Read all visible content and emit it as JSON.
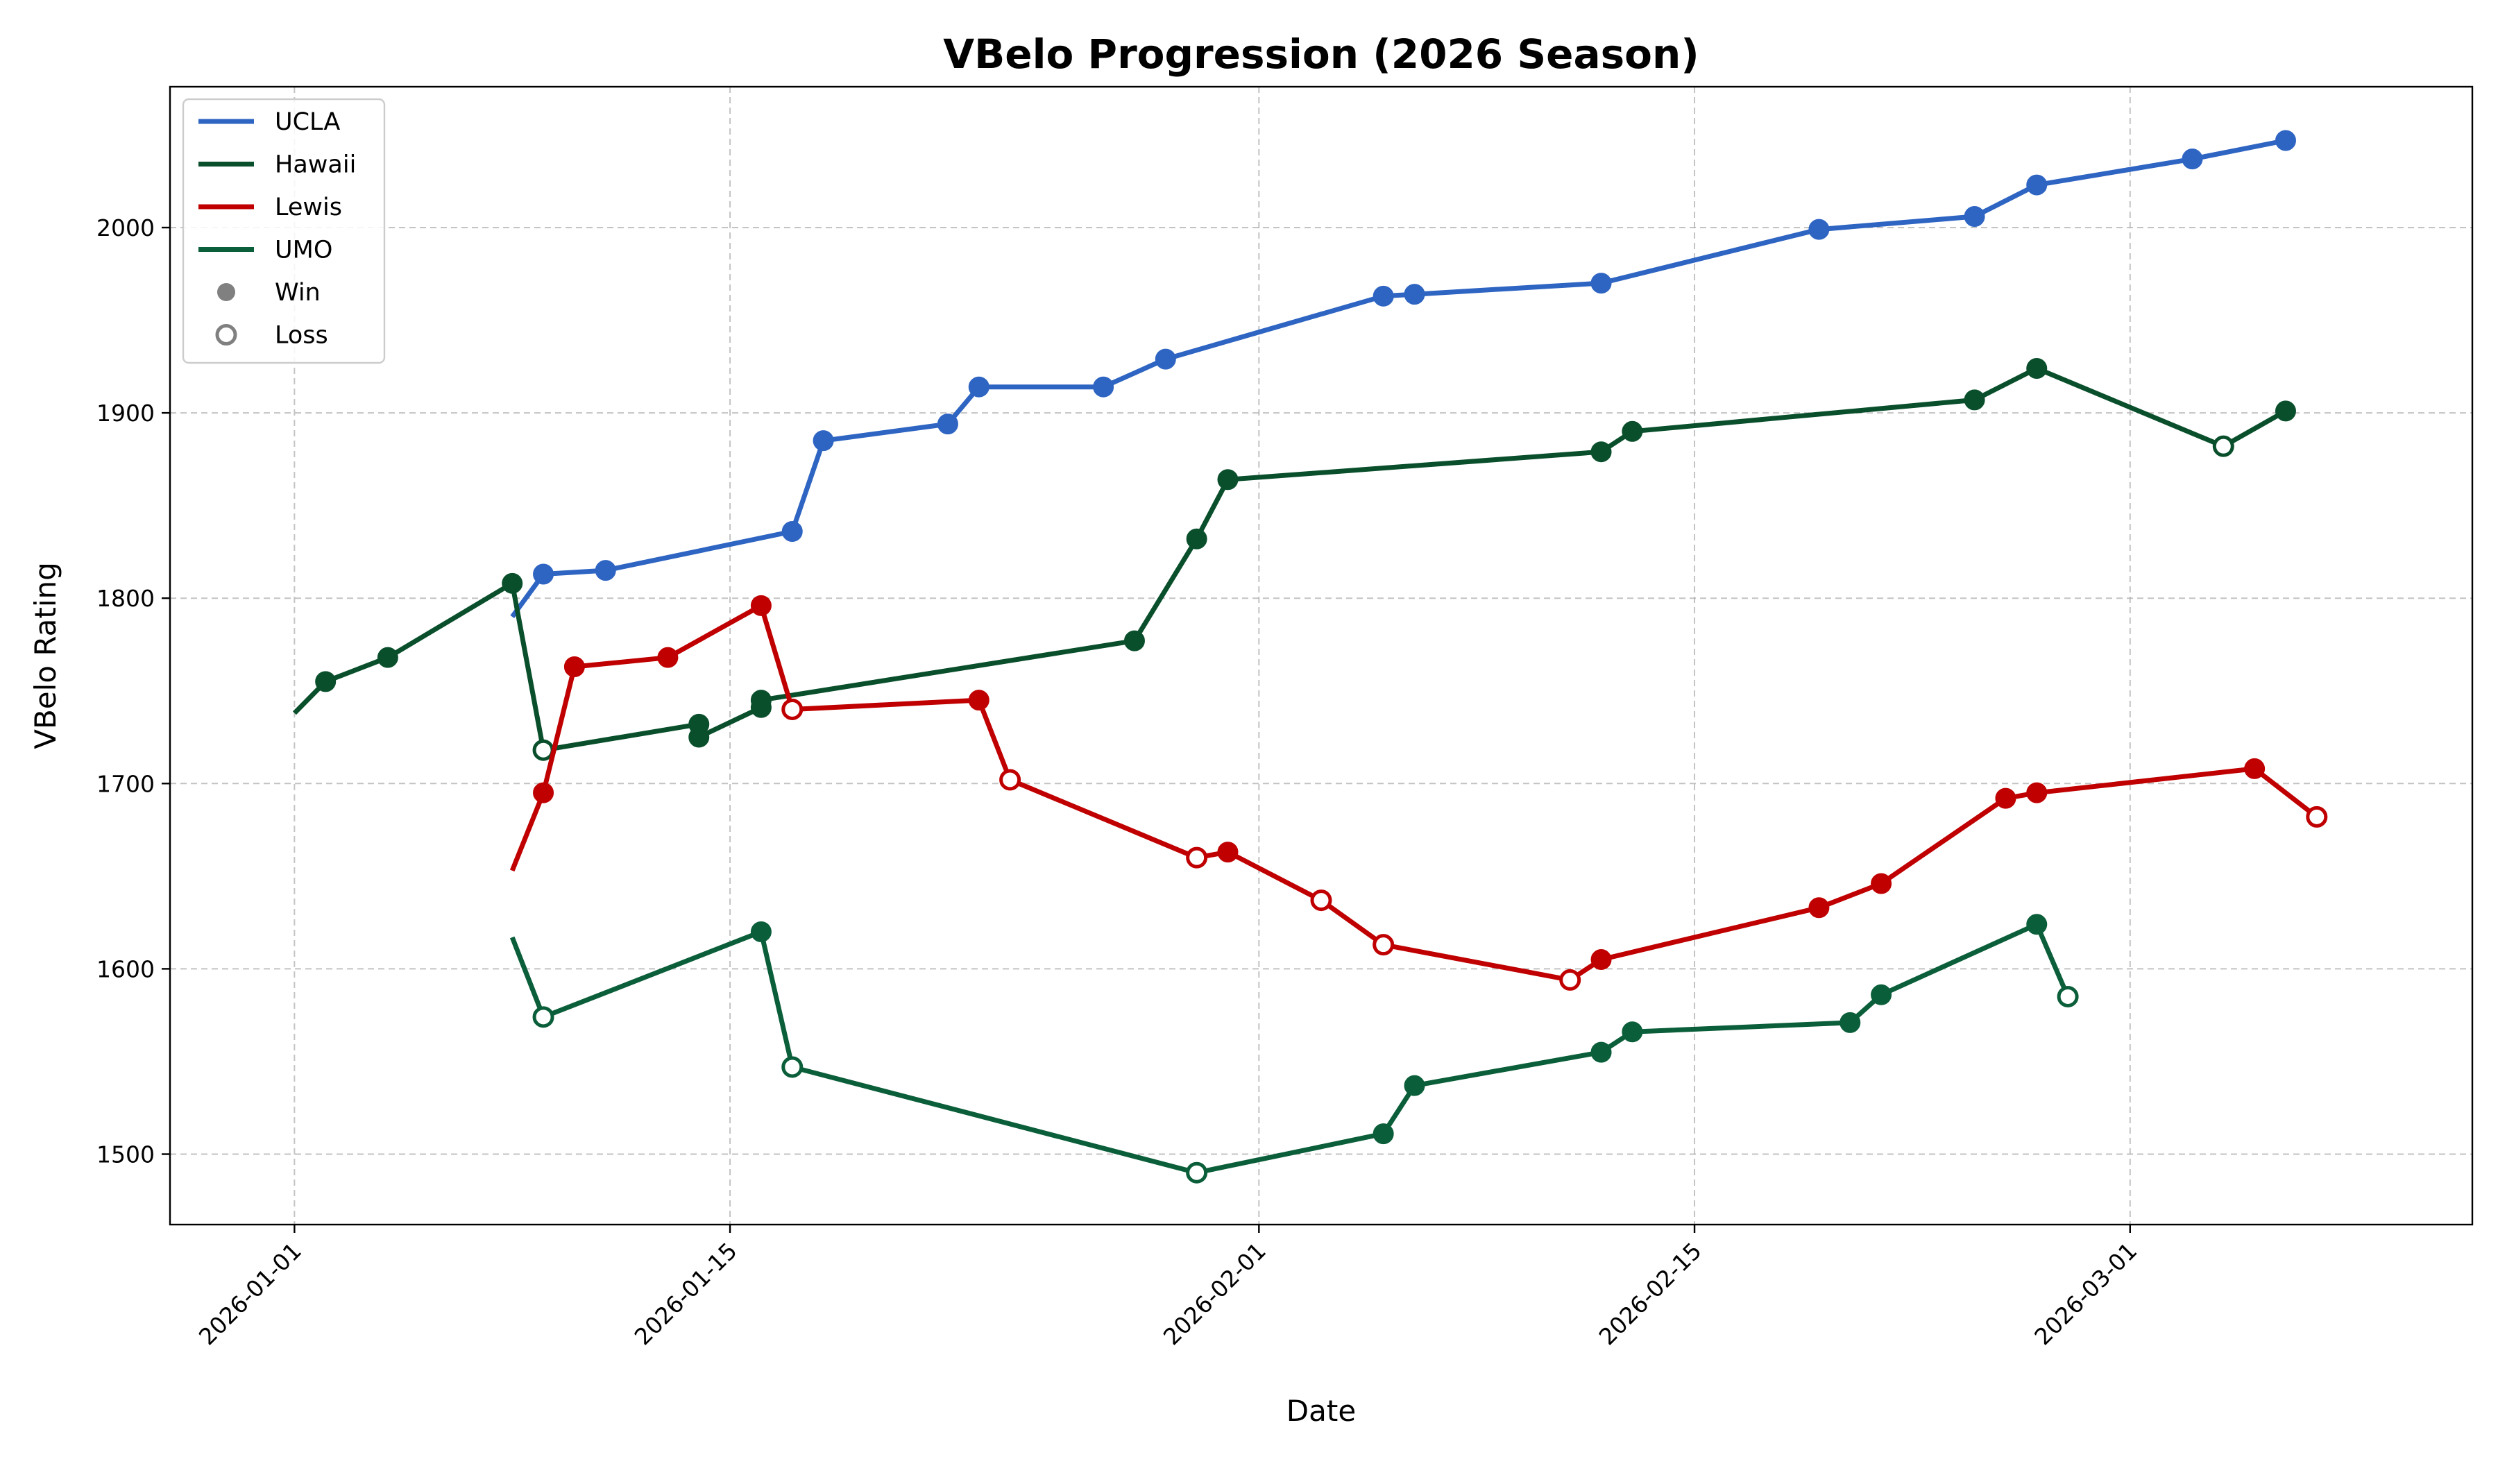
{
  "chart_data": {
    "type": "line",
    "title": "VBelo Progression (2026 Season)",
    "xlabel": "Date",
    "ylabel": "VBelo Rating",
    "xlim": [
      "2025-12-28",
      "2026-03-12"
    ],
    "ylim": [
      1462,
      2076
    ],
    "x_ticks": [
      "2026-01-01",
      "2026-01-15",
      "2026-02-01",
      "2026-02-15",
      "2026-03-01"
    ],
    "y_ticks": [
      1500,
      1600,
      1700,
      1800,
      1900,
      2000
    ],
    "grid": true,
    "legend_position": "top-left",
    "legend": {
      "win_label": "Win",
      "loss_label": "Loss",
      "marker_color": "#808080"
    },
    "series": [
      {
        "name": "UCLA",
        "color": "#2e64c2",
        "start": {
          "x": "2026-01-08",
          "y": 1790
        },
        "points": [
          {
            "x": "2026-01-09",
            "y": 1813,
            "result": "win"
          },
          {
            "x": "2026-01-11",
            "y": 1815,
            "result": "win"
          },
          {
            "x": "2026-01-17",
            "y": 1836,
            "result": "win"
          },
          {
            "x": "2026-01-18",
            "y": 1885,
            "result": "win"
          },
          {
            "x": "2026-01-22",
            "y": 1894,
            "result": "win"
          },
          {
            "x": "2026-01-23",
            "y": 1914,
            "result": "win"
          },
          {
            "x": "2026-01-27",
            "y": 1914,
            "result": "win"
          },
          {
            "x": "2026-01-29",
            "y": 1929,
            "result": "win"
          },
          {
            "x": "2026-02-05",
            "y": 1963,
            "result": "win"
          },
          {
            "x": "2026-02-06",
            "y": 1964,
            "result": "win"
          },
          {
            "x": "2026-02-12",
            "y": 1970,
            "result": "win"
          },
          {
            "x": "2026-02-19",
            "y": 1999,
            "result": "win"
          },
          {
            "x": "2026-02-24",
            "y": 2006,
            "result": "win"
          },
          {
            "x": "2026-02-26",
            "y": 2023,
            "result": "win"
          },
          {
            "x": "2026-03-03",
            "y": 2037,
            "result": "win"
          },
          {
            "x": "2026-03-06",
            "y": 2047,
            "result": "win"
          }
        ]
      },
      {
        "name": "Hawaii",
        "color": "#0a4f2c",
        "start": {
          "x": "2026-01-01",
          "y": 1738
        },
        "points": [
          {
            "x": "2026-01-02",
            "y": 1755,
            "result": "win"
          },
          {
            "x": "2026-01-04",
            "y": 1768,
            "result": "win"
          },
          {
            "x": "2026-01-08",
            "y": 1808,
            "result": "win"
          },
          {
            "x": "2026-01-09",
            "y": 1718,
            "result": "loss"
          },
          {
            "x": "2026-01-14",
            "y": 1732,
            "result": "win"
          },
          {
            "x": "2026-01-14",
            "y": 1725,
            "result": "win"
          },
          {
            "x": "2026-01-16",
            "y": 1741,
            "result": "win"
          },
          {
            "x": "2026-01-16",
            "y": 1745,
            "result": "win"
          },
          {
            "x": "2026-01-28",
            "y": 1777,
            "result": "win"
          },
          {
            "x": "2026-01-30",
            "y": 1832,
            "result": "win"
          },
          {
            "x": "2026-01-31",
            "y": 1864,
            "result": "win"
          },
          {
            "x": "2026-02-12",
            "y": 1879,
            "result": "win"
          },
          {
            "x": "2026-02-13",
            "y": 1890,
            "result": "win"
          },
          {
            "x": "2026-02-24",
            "y": 1907,
            "result": "win"
          },
          {
            "x": "2026-02-26",
            "y": 1924,
            "result": "win"
          },
          {
            "x": "2026-03-04",
            "y": 1882,
            "result": "loss"
          },
          {
            "x": "2026-03-06",
            "y": 1901,
            "result": "win"
          }
        ]
      },
      {
        "name": "Lewis",
        "color": "#c00000",
        "start": {
          "x": "2026-01-08",
          "y": 1653
        },
        "points": [
          {
            "x": "2026-01-09",
            "y": 1695,
            "result": "win"
          },
          {
            "x": "2026-01-10",
            "y": 1763,
            "result": "win"
          },
          {
            "x": "2026-01-13",
            "y": 1768,
            "result": "win"
          },
          {
            "x": "2026-01-16",
            "y": 1796,
            "result": "win"
          },
          {
            "x": "2026-01-17",
            "y": 1740,
            "result": "loss"
          },
          {
            "x": "2026-01-23",
            "y": 1745,
            "result": "win"
          },
          {
            "x": "2026-01-24",
            "y": 1702,
            "result": "loss"
          },
          {
            "x": "2026-01-30",
            "y": 1660,
            "result": "loss"
          },
          {
            "x": "2026-01-31",
            "y": 1663,
            "result": "win"
          },
          {
            "x": "2026-02-03",
            "y": 1637,
            "result": "loss"
          },
          {
            "x": "2026-02-05",
            "y": 1613,
            "result": "loss"
          },
          {
            "x": "2026-02-11",
            "y": 1594,
            "result": "loss"
          },
          {
            "x": "2026-02-12",
            "y": 1605,
            "result": "win"
          },
          {
            "x": "2026-02-19",
            "y": 1633,
            "result": "win"
          },
          {
            "x": "2026-02-21",
            "y": 1646,
            "result": "win"
          },
          {
            "x": "2026-02-25",
            "y": 1692,
            "result": "win"
          },
          {
            "x": "2026-02-26",
            "y": 1695,
            "result": "win"
          },
          {
            "x": "2026-03-05",
            "y": 1708,
            "result": "win"
          },
          {
            "x": "2026-03-07",
            "y": 1682,
            "result": "loss"
          }
        ]
      },
      {
        "name": "UMO",
        "color": "#0b5e3a",
        "start": {
          "x": "2026-01-08",
          "y": 1617
        },
        "points": [
          {
            "x": "2026-01-09",
            "y": 1574,
            "result": "loss"
          },
          {
            "x": "2026-01-16",
            "y": 1620,
            "result": "win"
          },
          {
            "x": "2026-01-17",
            "y": 1547,
            "result": "loss"
          },
          {
            "x": "2026-01-30",
            "y": 1490,
            "result": "loss"
          },
          {
            "x": "2026-02-05",
            "y": 1511,
            "result": "win"
          },
          {
            "x": "2026-02-06",
            "y": 1537,
            "result": "win"
          },
          {
            "x": "2026-02-12",
            "y": 1555,
            "result": "win"
          },
          {
            "x": "2026-02-13",
            "y": 1566,
            "result": "win"
          },
          {
            "x": "2026-02-20",
            "y": 1571,
            "result": "win"
          },
          {
            "x": "2026-02-21",
            "y": 1586,
            "result": "win"
          },
          {
            "x": "2026-02-26",
            "y": 1624,
            "result": "win"
          },
          {
            "x": "2026-02-27",
            "y": 1585,
            "result": "loss"
          }
        ]
      }
    ]
  }
}
